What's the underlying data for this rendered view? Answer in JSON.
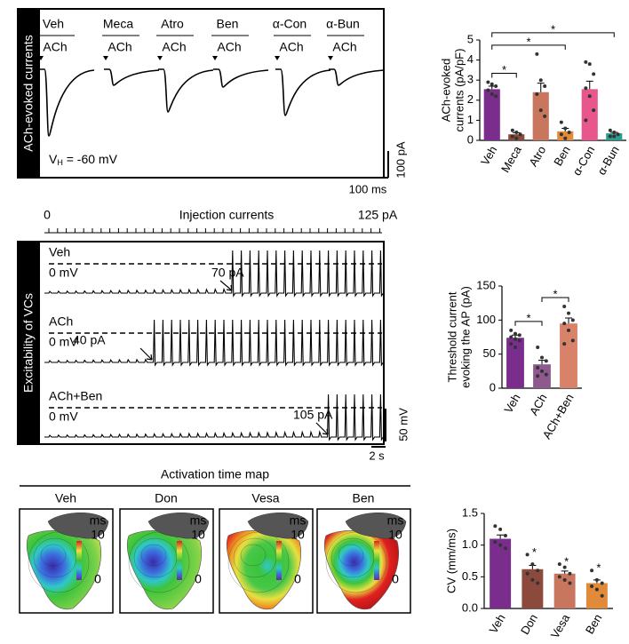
{
  "panel_a": {
    "side_label": "ACh-evoked currents",
    "conditions": [
      "Veh",
      "Meca",
      "Atro",
      "Ben",
      "α-Con",
      "α-Bun"
    ],
    "stimulus": "ACh",
    "holding": "V",
    "holding_sub": "H",
    "holding_value": " = -60 mV",
    "scale_current": "100 pA",
    "scale_time": "100 ms"
  },
  "panel_b": {
    "ramp_label": "Injection currents",
    "ramp_start": "0",
    "ramp_end": "125 pA",
    "side_label": "Excitability of VCs",
    "traces": [
      {
        "name": "Veh",
        "zero": "0 mV",
        "threshold": "70 pA"
      },
      {
        "name": "ACh",
        "zero": "0 mV",
        "threshold": "40 pA"
      },
      {
        "name": "ACh+Ben",
        "zero": "0 mV",
        "threshold": "105 pA"
      }
    ],
    "scale_voltage": "50 mV",
    "scale_time": "2 s"
  },
  "panel_c": {
    "title": "Activation time map",
    "maps": [
      "Veh",
      "Don",
      "Vesa",
      "Ben"
    ],
    "unit": "ms",
    "scale_max": "10",
    "scale_min": "0"
  },
  "chart_data": [
    {
      "type": "bar",
      "ylabel": [
        "ACh-evoked",
        "currents (pA/pF)"
      ],
      "categories": [
        "Veh",
        "Meca",
        "Atro",
        "Ben",
        "α-Con",
        "α-Bun"
      ],
      "values": [
        2.55,
        0.3,
        2.4,
        0.45,
        2.55,
        0.35
      ],
      "errors": [
        0.15,
        0.08,
        0.45,
        0.15,
        0.4,
        0.05
      ],
      "points": [
        [
          2.9,
          2.8,
          2.7,
          2.5,
          2.3,
          2.2
        ],
        [
          0.5,
          0.4,
          0.3,
          0.2,
          0.1
        ],
        [
          4.3,
          3.0,
          2.7,
          2.3,
          1.5,
          1.2
        ],
        [
          0.9,
          0.6,
          0.4,
          0.3,
          0.1
        ],
        [
          3.9,
          3.8,
          3.3,
          2.6,
          2.2,
          1.5,
          1.0
        ],
        [
          0.5,
          0.4,
          0.3,
          0.2,
          0.2
        ]
      ],
      "colors": [
        "#7b2d8e",
        "#8c4a3c",
        "#c9765e",
        "#e08a3a",
        "#e8578c",
        "#2a9d8f"
      ],
      "ylim": [
        0,
        5
      ],
      "yticks": [
        0,
        1,
        2,
        3,
        4,
        5
      ],
      "significance": [
        {
          "label": "*",
          "pair": [
            "Veh",
            "Meca"
          ]
        },
        {
          "label": "*",
          "pair": [
            "Veh",
            "Ben"
          ]
        },
        {
          "label": "*",
          "pair": [
            "Veh",
            "α-Bun"
          ]
        }
      ]
    },
    {
      "type": "bar",
      "ylabel": [
        "Threshold current",
        "evoking the AP (pA)"
      ],
      "categories": [
        "Veh",
        "ACh",
        "ACh+Ben"
      ],
      "values": [
        74,
        35,
        95
      ],
      "errors": [
        4,
        6,
        8
      ],
      "points": [
        [
          85,
          80,
          78,
          75,
          72,
          70,
          65,
          60
        ],
        [
          60,
          45,
          40,
          30,
          25,
          20,
          18
        ],
        [
          120,
          110,
          100,
          95,
          85,
          70,
          65
        ]
      ],
      "colors": [
        "#7b2d8e",
        "#8e5a8e",
        "#d9826a"
      ],
      "ylim": [
        0,
        150
      ],
      "yticks": [
        0,
        50,
        100,
        150
      ],
      "significance": [
        {
          "label": "*",
          "pair": [
            "Veh",
            "ACh"
          ]
        },
        {
          "label": "*",
          "pair": [
            "ACh",
            "ACh+Ben"
          ]
        }
      ]
    },
    {
      "type": "bar",
      "ylabel": [
        "CV (mm/ms)"
      ],
      "categories": [
        "Veh",
        "Don",
        "Vesa",
        "Ben"
      ],
      "values": [
        1.1,
        0.62,
        0.55,
        0.4
      ],
      "errors": [
        0.06,
        0.06,
        0.04,
        0.05
      ],
      "points": [
        [
          1.3,
          1.25,
          1.15,
          1.05,
          1.0,
          0.95
        ],
        [
          0.85,
          0.7,
          0.6,
          0.55,
          0.45,
          0.4
        ],
        [
          0.7,
          0.65,
          0.55,
          0.5,
          0.45,
          0.4
        ],
        [
          0.6,
          0.45,
          0.4,
          0.35,
          0.3,
          0.2
        ]
      ],
      "colors": [
        "#7b2d8e",
        "#8c4a3c",
        "#c9765e",
        "#e08a3a"
      ],
      "ylim": [
        0,
        1.5
      ],
      "yticks": [
        {
          "value": 0,
          "label": "0.0"
        },
        0.5,
        {
          "value": 1,
          "label": "1.0"
        },
        1.5
      ],
      "significance": [
        {
          "label": "*",
          "over": "Don"
        },
        {
          "label": "*",
          "over": "Vesa"
        },
        {
          "label": "*",
          "over": "Ben"
        }
      ]
    }
  ]
}
